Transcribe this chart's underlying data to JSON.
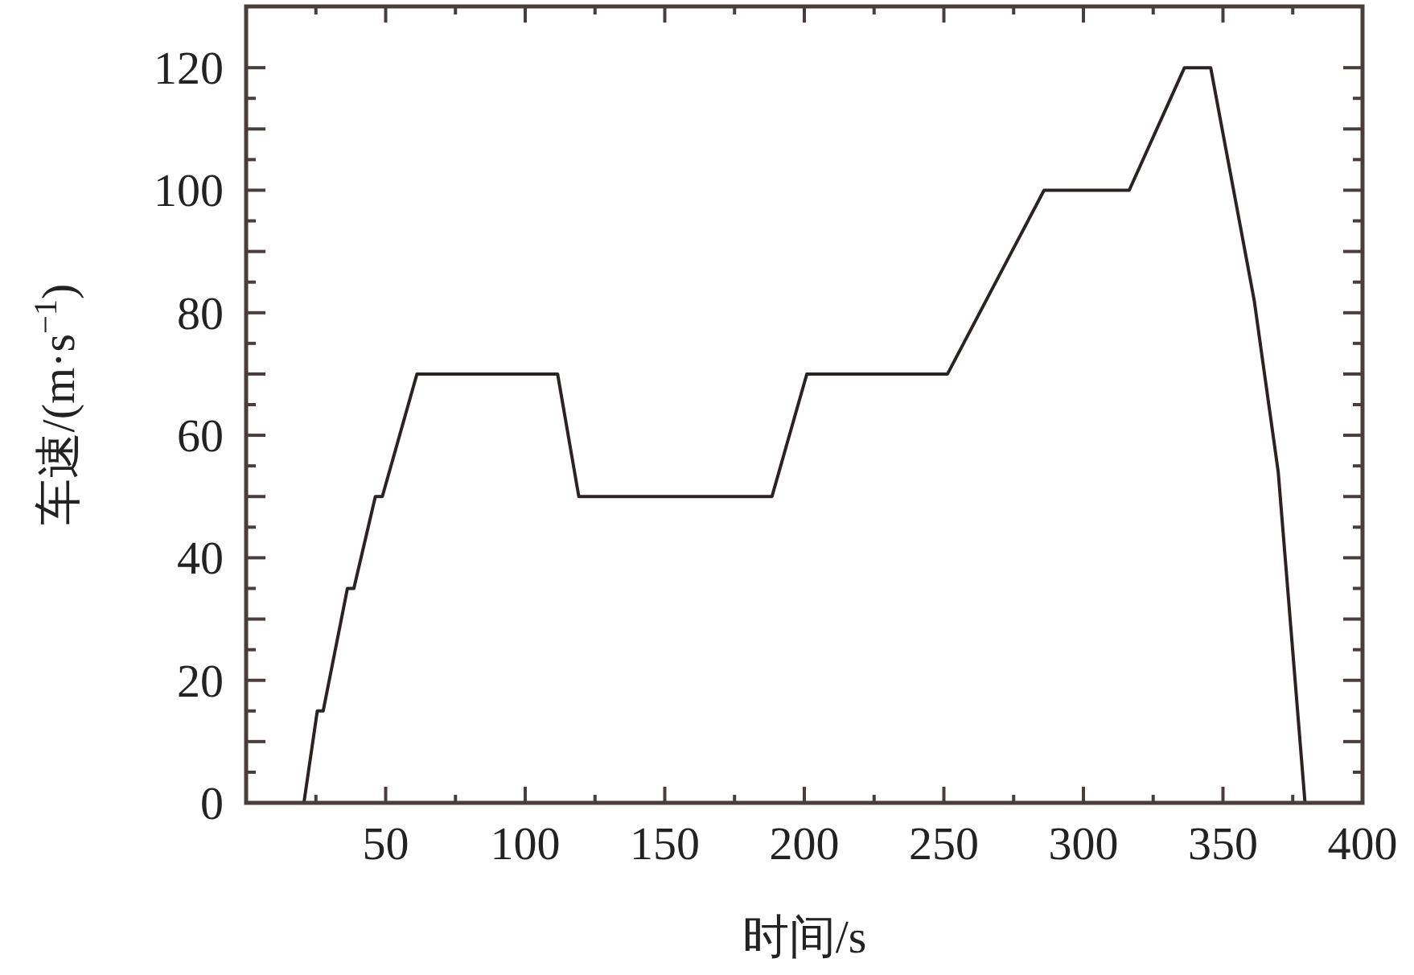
{
  "chart_data": {
    "type": "line",
    "xlabel": "时间/s",
    "ylabel": "车速/(m·s$^{−1}$)",
    "xlim": [
      0,
      400
    ],
    "xticks": [
      50,
      100,
      150,
      200,
      250,
      300,
      350,
      400
    ],
    "ylim": [
      0,
      130
    ],
    "yticks": [
      0,
      {
        "value": 10,
        "label": null
      },
      20,
      {
        "value": 30,
        "label": null
      },
      40,
      {
        "value": 50,
        "label": null
      },
      60,
      {
        "value": 70,
        "label": null
      },
      80,
      {
        "value": 90,
        "label": null
      },
      100,
      {
        "value": 110,
        "label": null
      },
      120
    ],
    "series": [
      {
        "color": "#2b2222",
        "x": [
          20.7,
          25.5,
          27.6,
          36.3,
          38.6,
          46.3,
          48.8,
          61.2,
          111.6,
          119.2,
          188.4,
          200.9,
          251.3,
          285.9,
          316.4,
          336.2,
          345.6,
          349.7,
          361.2,
          369.8,
          379.4
        ],
        "values": [
          0,
          15,
          15,
          35,
          35,
          50,
          50,
          70,
          70,
          50,
          50,
          70,
          70,
          100,
          100,
          120,
          120,
          110,
          82,
          54,
          0
        ]
      }
    ]
  }
}
